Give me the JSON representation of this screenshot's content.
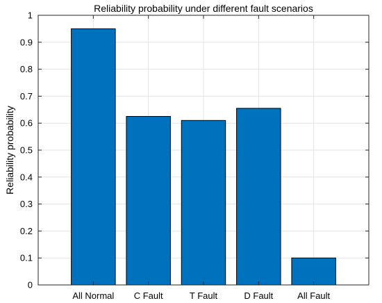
{
  "chart_data": {
    "type": "bar",
    "title": "Reliability probability under different fault scenarios",
    "xlabel": "",
    "ylabel": "Reliability probability",
    "categories": [
      "All Normal",
      "C Fault",
      "T Fault",
      "D Fault",
      "All Fault"
    ],
    "values": [
      0.95,
      0.625,
      0.61,
      0.655,
      0.1
    ],
    "ylim": [
      0,
      1
    ],
    "yticks": [
      "0",
      "0.1",
      "0.2",
      "0.3",
      "0.4",
      "0.5",
      "0.6",
      "0.7",
      "0.8",
      "0.9",
      "1"
    ],
    "ytick_values": [
      0,
      0.1,
      0.2,
      0.3,
      0.4,
      0.5,
      0.6,
      0.7,
      0.8,
      0.9,
      1
    ],
    "grid": true,
    "bar_color": "#0072bd",
    "bar_edge_color": "#000000"
  }
}
